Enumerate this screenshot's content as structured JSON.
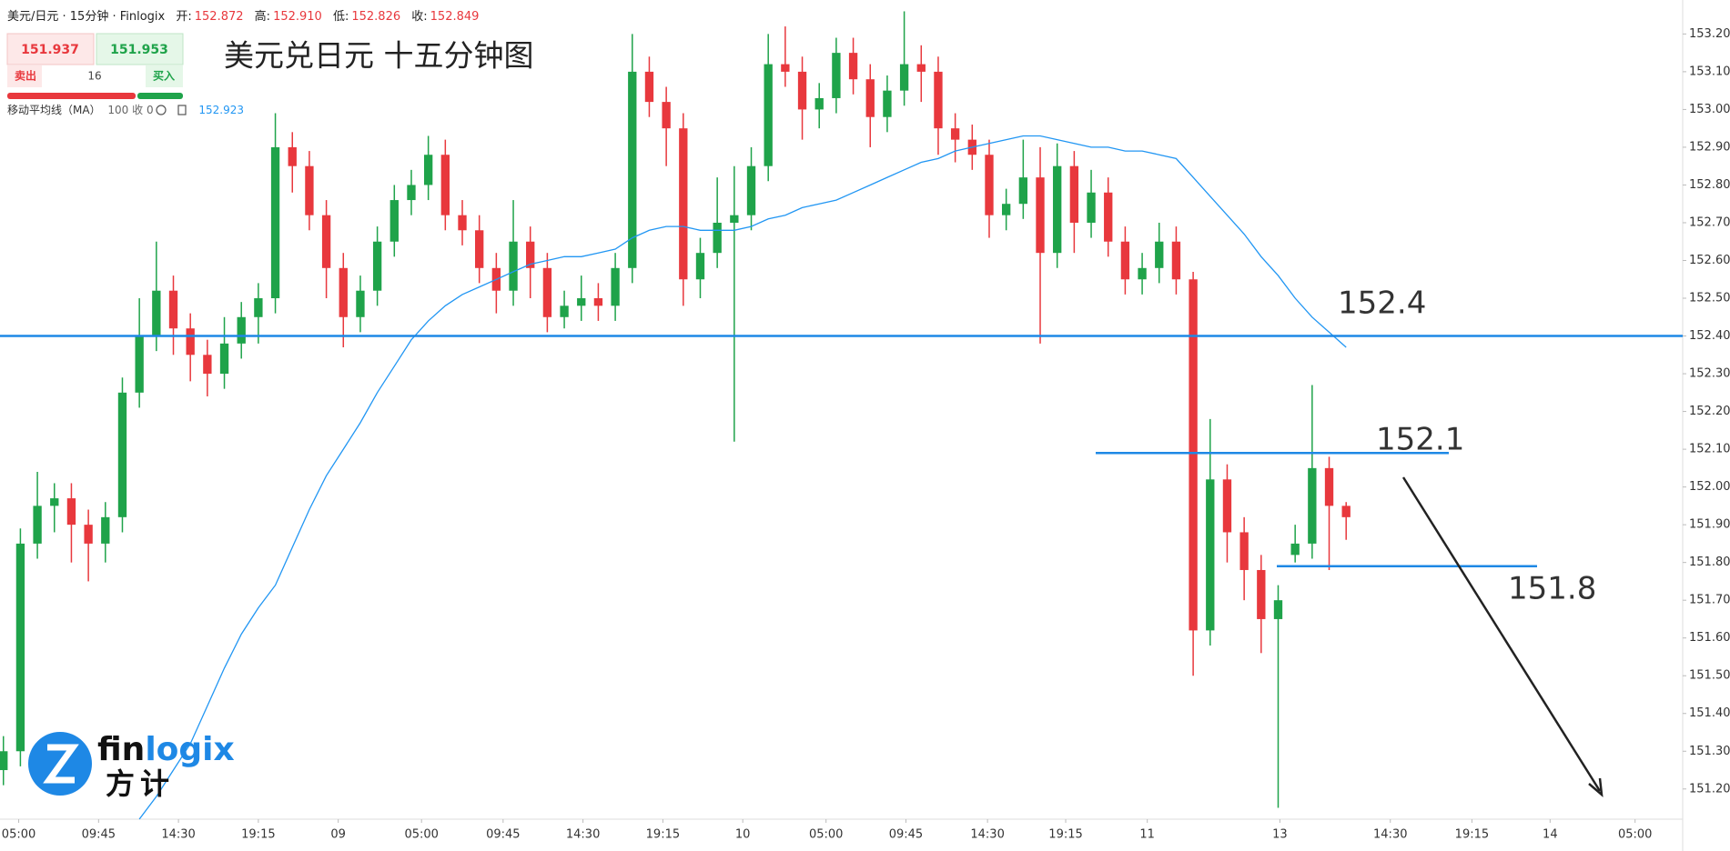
{
  "header": {
    "symbol": "美元/日元 · 15分钟 · Finlogix",
    "ohlc": [
      {
        "label": "开:",
        "value": "152.872"
      },
      {
        "label": "高:",
        "value": "152.910"
      },
      {
        "label": "低:",
        "value": "152.826"
      },
      {
        "label": "收:",
        "value": "152.849"
      }
    ]
  },
  "trade_panel": {
    "sell_price": "151.937",
    "buy_price": "151.953",
    "sell_label": "卖出",
    "spread": "16",
    "buy_label": "买入"
  },
  "indicator": {
    "name": "移动平均线（MA）",
    "params": "100 收 0",
    "value": "152.923"
  },
  "logo": {
    "text": [
      "fin",
      "logix"
    ],
    "subtitle": "方计"
  },
  "chart_data": {
    "type": "candlestick",
    "title": "美元兑日元 十五分钟图",
    "up_color": "#1fa34a",
    "down_color": "#e8383d",
    "ma_color": "#2196f3",
    "level_color": "#1e88e5",
    "xlim": [
      -0.2,
      98.8
    ],
    "ylim": [
      151.12,
      153.29
    ],
    "xticks": [
      {
        "value": 0.9,
        "label": "05:00"
      },
      {
        "value": 5.6,
        "label": "09:45"
      },
      {
        "value": 10.3,
        "label": "14:30"
      },
      {
        "value": 15.0,
        "label": "19:15"
      },
      {
        "value": 19.7,
        "label": "09"
      },
      {
        "value": 24.6,
        "label": "05:00"
      },
      {
        "value": 29.4,
        "label": "09:45"
      },
      {
        "value": 34.1,
        "label": "14:30"
      },
      {
        "value": 38.8,
        "label": "19:15"
      },
      {
        "value": 43.5,
        "label": "10"
      },
      {
        "value": 48.4,
        "label": "05:00"
      },
      {
        "value": 53.1,
        "label": "09:45"
      },
      {
        "value": 57.9,
        "label": "14:30"
      },
      {
        "value": 62.5,
        "label": "19:15"
      },
      {
        "value": 67.3,
        "label": "11"
      },
      {
        "value": 75.1,
        "label": "13"
      },
      {
        "value": 81.6,
        "label": "14:30"
      },
      {
        "value": 86.4,
        "label": "19:15"
      },
      {
        "value": 91.0,
        "label": "14"
      },
      {
        "value": 96.0,
        "label": "05:00"
      }
    ],
    "yticks": [
      {
        "value": 153.2,
        "label": "153.200"
      },
      {
        "value": 153.1,
        "label": "153.100"
      },
      {
        "value": 153.0,
        "label": "153.000"
      },
      {
        "value": 152.9,
        "label": "152.900"
      },
      {
        "value": 152.8,
        "label": "152.800"
      },
      {
        "value": 152.7,
        "label": "152.700"
      },
      {
        "value": 152.6,
        "label": "152.600"
      },
      {
        "value": 152.5,
        "label": "152.500"
      },
      {
        "value": 152.4,
        "label": "152.400"
      },
      {
        "value": 152.3,
        "label": "152.300"
      },
      {
        "value": 152.2,
        "label": "152.200"
      },
      {
        "value": 152.1,
        "label": "152.100"
      },
      {
        "value": 152.0,
        "label": "152.000"
      },
      {
        "value": 151.9,
        "label": "151.900"
      },
      {
        "value": 151.8,
        "label": "151.800"
      },
      {
        "value": 151.7,
        "label": "151.700"
      },
      {
        "value": 151.6,
        "label": "151.600"
      },
      {
        "value": 151.5,
        "label": "151.500"
      },
      {
        "value": 151.4,
        "label": "151.400"
      },
      {
        "value": 151.3,
        "label": "151.300"
      },
      {
        "value": 151.2,
        "label": "151.200"
      }
    ],
    "open": [
      151.25,
      151.3,
      151.85,
      151.95,
      151.97,
      151.9,
      151.85,
      151.92,
      152.25,
      152.4,
      152.52,
      152.42,
      152.35,
      152.3,
      152.38,
      152.45,
      152.5,
      152.9,
      152.85,
      152.72,
      152.58,
      152.45,
      152.52,
      152.65,
      152.76,
      152.8,
      152.88,
      152.72,
      152.68,
      152.58,
      152.52,
      152.65,
      152.58,
      152.45,
      152.48,
      152.5,
      152.48,
      152.58,
      153.1,
      153.02,
      152.95,
      152.55,
      152.62,
      152.7,
      152.72,
      152.85,
      153.12,
      153.1,
      153.0,
      153.03,
      153.15,
      153.08,
      152.98,
      153.05,
      153.12,
      153.1,
      152.95,
      152.92,
      152.88,
      152.72,
      152.75,
      152.82,
      152.62,
      152.85,
      152.7,
      152.78,
      152.65,
      152.55,
      152.58,
      152.65,
      152.55,
      151.62,
      152.02,
      151.88,
      151.78,
      151.65,
      151.82,
      151.85,
      152.05,
      151.95
    ],
    "high": [
      151.34,
      151.89,
      152.04,
      152.01,
      152.01,
      151.94,
      151.96,
      152.29,
      152.5,
      152.65,
      152.56,
      152.46,
      152.39,
      152.45,
      152.49,
      152.54,
      152.99,
      152.94,
      152.89,
      152.76,
      152.62,
      152.56,
      152.69,
      152.8,
      152.84,
      152.93,
      152.92,
      152.76,
      152.72,
      152.62,
      152.76,
      152.69,
      152.62,
      152.52,
      152.56,
      152.54,
      152.62,
      153.2,
      153.14,
      153.06,
      152.99,
      152.66,
      152.82,
      152.85,
      152.9,
      153.2,
      153.22,
      153.14,
      153.07,
      153.19,
      153.19,
      153.12,
      153.09,
      153.26,
      153.17,
      153.14,
      152.99,
      152.96,
      152.92,
      152.79,
      152.92,
      152.9,
      152.91,
      152.89,
      152.84,
      152.82,
      152.69,
      152.62,
      152.7,
      152.69,
      152.57,
      152.18,
      152.06,
      151.92,
      151.82,
      151.74,
      151.9,
      152.27,
      152.08,
      151.96
    ],
    "low": [
      151.21,
      151.26,
      151.81,
      151.88,
      151.8,
      151.75,
      151.8,
      151.88,
      152.21,
      152.36,
      152.35,
      152.28,
      152.24,
      152.26,
      152.34,
      152.38,
      152.46,
      152.78,
      152.68,
      152.5,
      152.37,
      152.41,
      152.48,
      152.61,
      152.72,
      152.76,
      152.68,
      152.64,
      152.54,
      152.46,
      152.48,
      152.5,
      152.41,
      152.42,
      152.44,
      152.44,
      152.44,
      152.54,
      152.98,
      152.85,
      152.48,
      152.5,
      152.58,
      152.12,
      152.68,
      152.81,
      153.06,
      152.92,
      152.95,
      152.99,
      153.04,
      152.9,
      152.94,
      153.01,
      153.02,
      152.88,
      152.86,
      152.84,
      152.66,
      152.68,
      152.71,
      152.38,
      152.58,
      152.62,
      152.66,
      152.61,
      152.51,
      152.51,
      152.54,
      152.51,
      151.5,
      151.58,
      151.8,
      151.7,
      151.56,
      151.15,
      151.8,
      151.81,
      151.78,
      151.86
    ],
    "close": [
      151.3,
      151.85,
      151.95,
      151.97,
      151.9,
      151.85,
      151.92,
      152.25,
      152.4,
      152.52,
      152.42,
      152.35,
      152.3,
      152.38,
      152.45,
      152.5,
      152.9,
      152.85,
      152.72,
      152.58,
      152.45,
      152.52,
      152.65,
      152.76,
      152.8,
      152.88,
      152.72,
      152.68,
      152.58,
      152.52,
      152.65,
      152.58,
      152.45,
      152.48,
      152.5,
      152.48,
      152.58,
      153.1,
      153.02,
      152.95,
      152.55,
      152.62,
      152.7,
      152.72,
      152.85,
      153.12,
      153.1,
      153.0,
      153.03,
      153.15,
      153.08,
      152.98,
      153.05,
      153.12,
      153.1,
      152.95,
      152.92,
      152.88,
      152.72,
      152.75,
      152.82,
      152.62,
      152.85,
      152.7,
      152.78,
      152.65,
      152.55,
      152.58,
      152.65,
      152.55,
      151.62,
      152.02,
      151.88,
      151.78,
      151.65,
      151.7,
      151.85,
      152.05,
      151.95,
      151.92
    ],
    "ma_values": [
      null,
      null,
      null,
      null,
      null,
      null,
      null,
      null,
      151.12,
      151.18,
      151.25,
      151.32,
      151.42,
      151.52,
      151.61,
      151.68,
      151.74,
      151.84,
      151.94,
      152.03,
      152.1,
      152.17,
      152.25,
      152.32,
      152.39,
      152.44,
      152.48,
      152.51,
      152.53,
      152.55,
      152.57,
      152.59,
      152.6,
      152.61,
      152.61,
      152.62,
      152.63,
      152.66,
      152.68,
      152.69,
      152.69,
      152.68,
      152.68,
      152.68,
      152.69,
      152.71,
      152.72,
      152.74,
      152.75,
      152.76,
      152.78,
      152.8,
      152.82,
      152.84,
      152.86,
      152.87,
      152.89,
      152.9,
      152.91,
      152.92,
      152.93,
      152.93,
      152.92,
      152.91,
      152.9,
      152.9,
      152.89,
      152.89,
      152.88,
      152.87,
      152.82,
      152.77,
      152.72,
      152.67,
      152.61,
      152.56,
      152.5,
      152.45,
      152.41,
      152.37
    ],
    "levels": [
      {
        "value": 152.4,
        "label": "152.4"
      },
      {
        "value": 152.09,
        "label": "152.1"
      },
      {
        "value": 151.79,
        "label": "151.8"
      }
    ]
  }
}
